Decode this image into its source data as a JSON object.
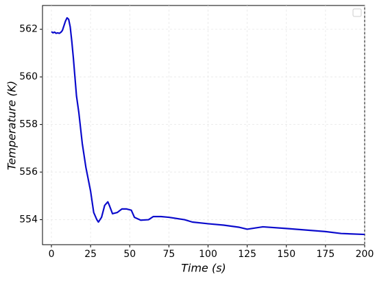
{
  "chart_data": {
    "type": "line",
    "xlabel": "Time (s)",
    "ylabel": "Temperature (K)",
    "x": [
      0,
      1,
      2,
      3,
      4,
      5,
      6,
      7,
      8,
      9,
      10,
      11,
      12,
      13,
      14,
      15,
      16,
      17.5,
      19.7,
      22,
      25,
      27,
      29,
      30,
      32,
      34,
      36,
      37,
      39,
      42,
      45,
      48,
      51,
      53,
      57,
      62,
      65,
      70,
      75,
      85,
      90,
      100,
      110,
      120,
      125,
      130,
      135,
      150,
      175,
      185,
      200
    ],
    "series": [
      {
        "color": "#0a0acc",
        "values": [
          561.9,
          561.85,
          561.88,
          561.83,
          561.85,
          561.83,
          561.87,
          561.95,
          562.15,
          562.35,
          562.48,
          562.42,
          562.1,
          561.5,
          560.8,
          560.0,
          559.2,
          558.5,
          557.2,
          556.2,
          555.2,
          554.3,
          554.0,
          553.9,
          554.1,
          554.6,
          554.75,
          554.6,
          554.25,
          554.3,
          554.45,
          554.45,
          554.4,
          554.1,
          553.98,
          554.0,
          554.13,
          554.13,
          554.1,
          554.0,
          553.9,
          553.83,
          553.77,
          553.68,
          553.6,
          553.65,
          553.7,
          553.63,
          553.5,
          553.42,
          553.38
        ]
      }
    ],
    "xlim": [
      -5.7,
      200
    ],
    "ylim": [
      552.95,
      563.0
    ],
    "xticks": [
      0,
      25,
      50,
      75,
      100,
      125,
      150,
      175,
      200
    ],
    "yticks": [
      554,
      556,
      558,
      560,
      562
    ],
    "grid": true
  }
}
